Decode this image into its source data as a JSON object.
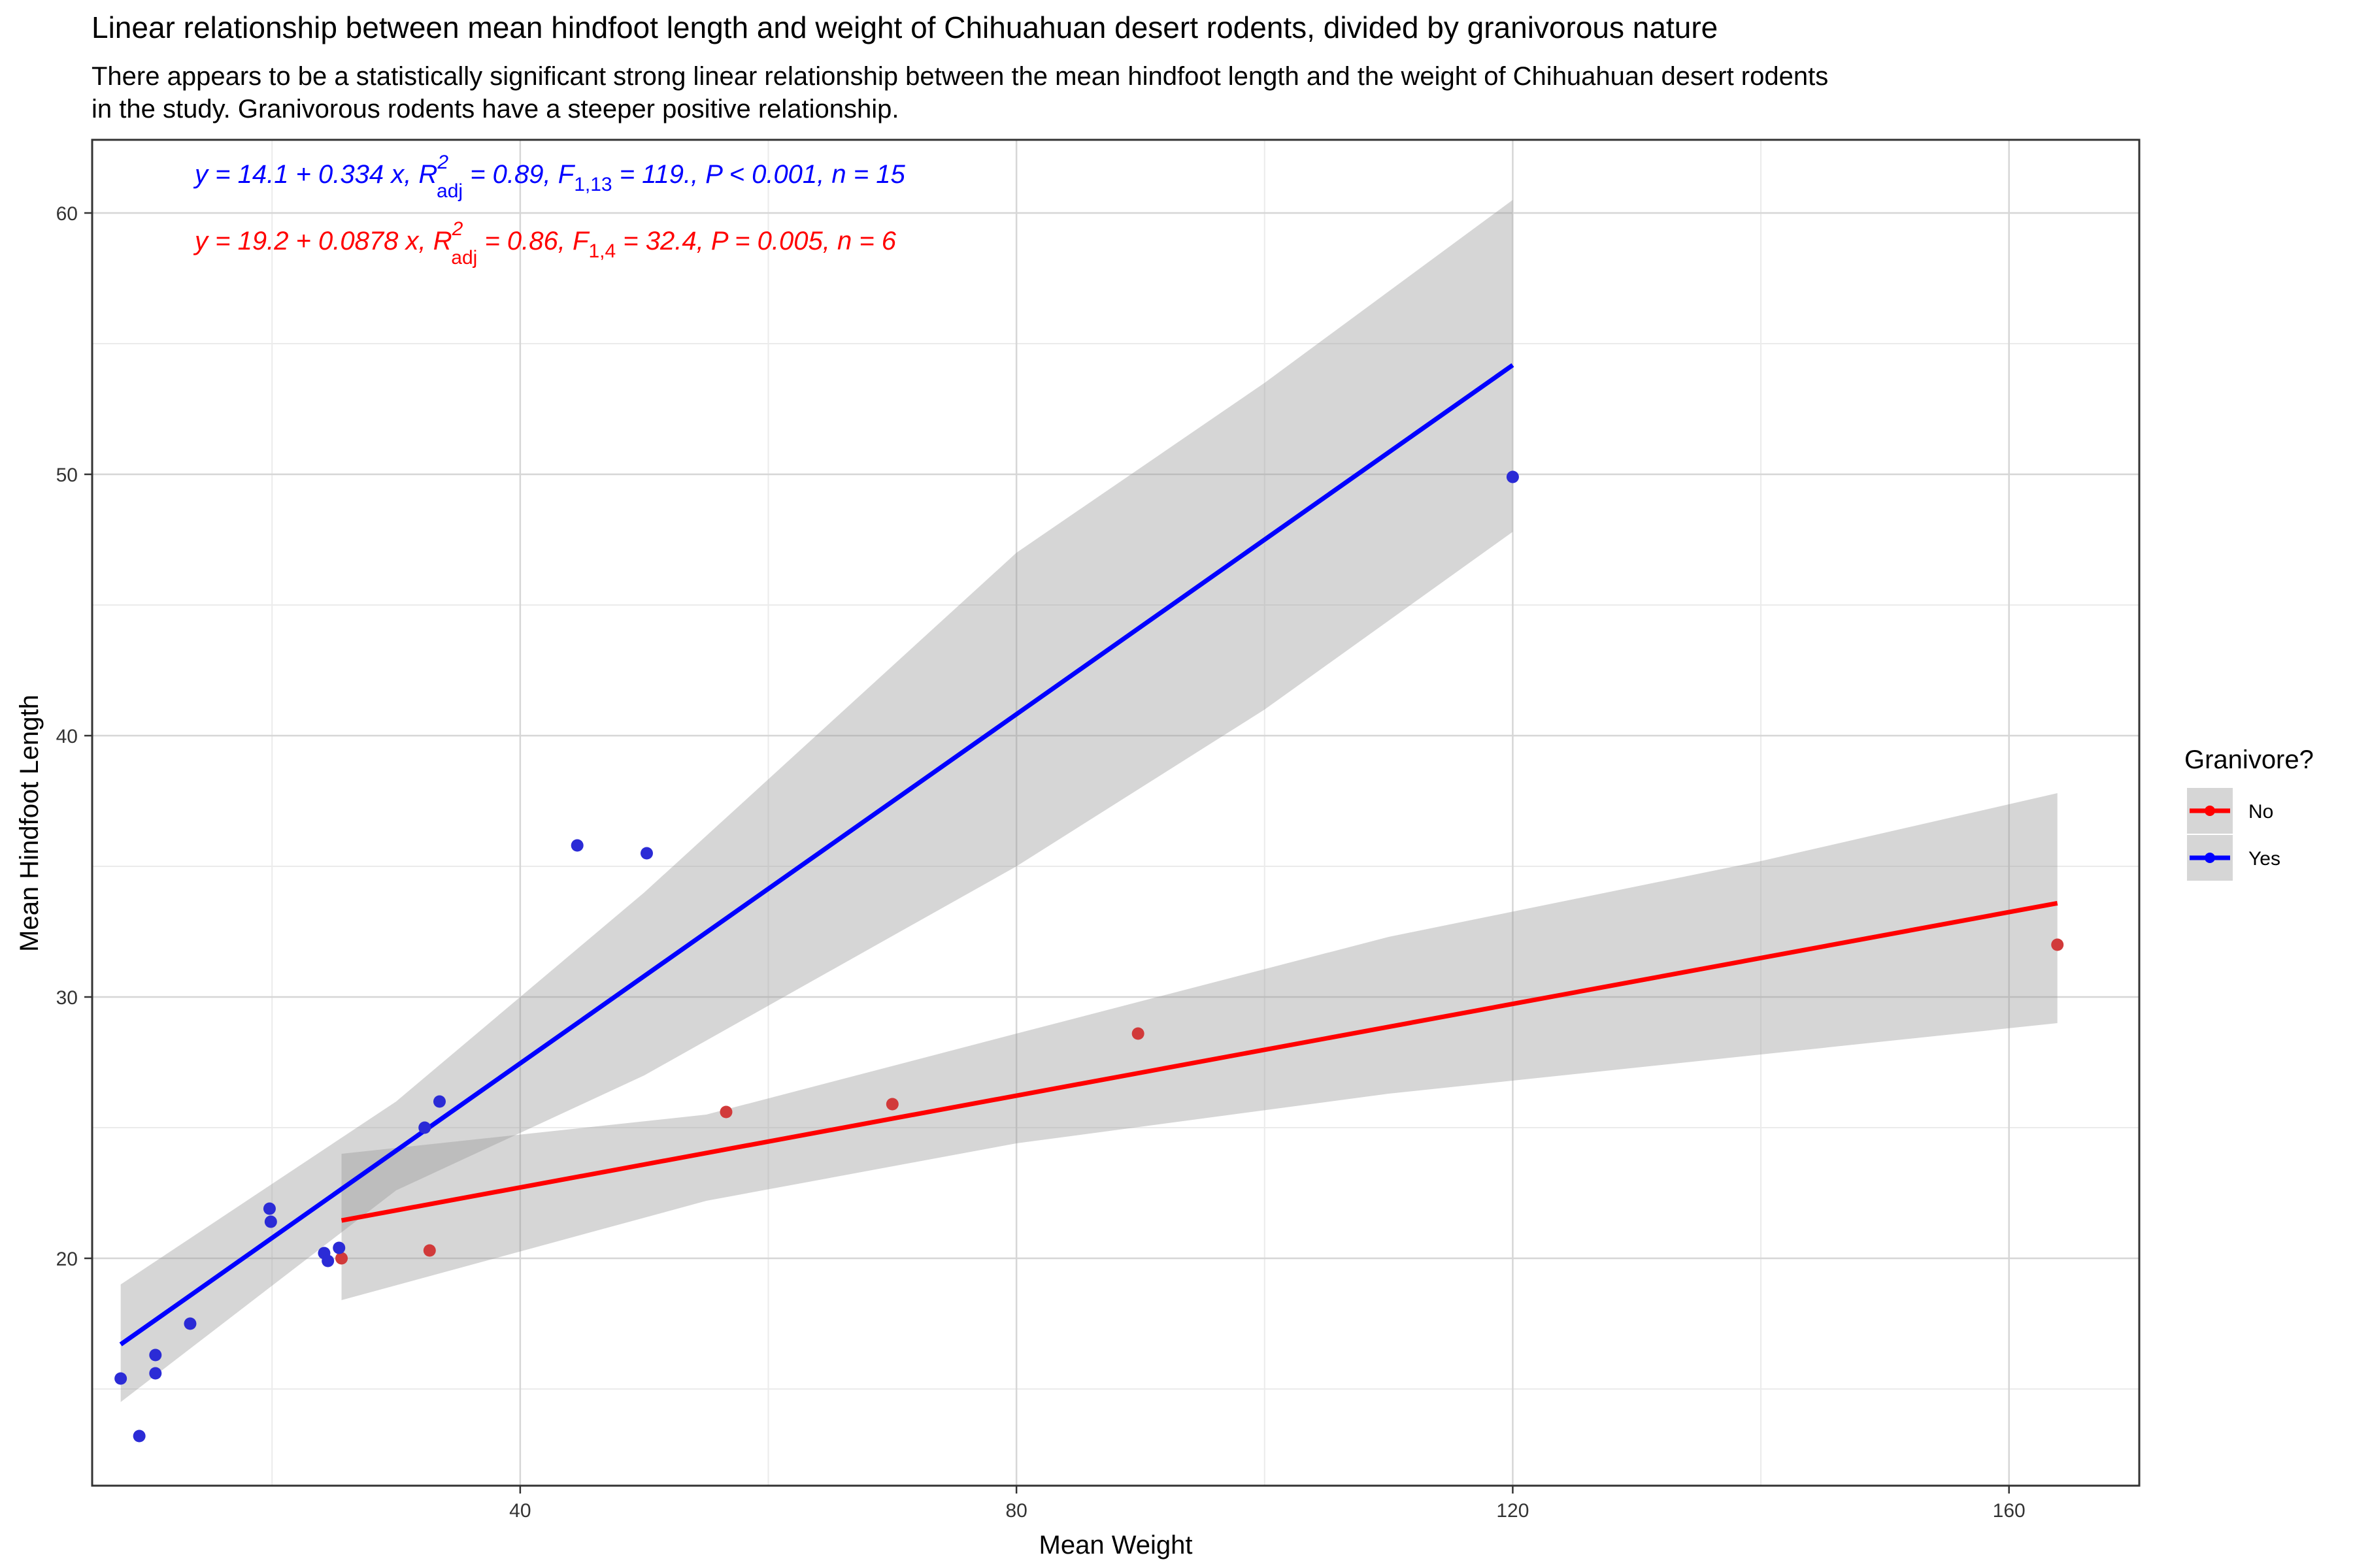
{
  "chart_data": {
    "type": "scatter",
    "title": "Linear relationship between mean hindfoot length and weight of Chihuahuan desert rodents, divided by granivorous nature",
    "subtitle_lines": [
      "There appears to be a statistically significant strong linear relationship between the mean hindfoot length and the weight of Chihuahuan desert rodents",
      "in the study. Granivorous rodents have a steeper positive relationship."
    ],
    "xlabel": "Mean Weight",
    "ylabel": "Mean Hindfoot Length",
    "xlim": [
      5.5,
      170.5
    ],
    "ylim": [
      11.3,
      62.8
    ],
    "x_ticks": [
      40,
      80,
      120,
      160
    ],
    "x_minor_ticks": [
      20,
      60,
      100,
      140
    ],
    "y_ticks": [
      20,
      30,
      40,
      50,
      60
    ],
    "y_minor_ticks": [
      15,
      25,
      35,
      45,
      55
    ],
    "grid": true,
    "legend": {
      "title": "Granivore?",
      "position": "right",
      "entries": [
        "No",
        "Yes"
      ]
    },
    "series": [
      {
        "name": "No",
        "color": "#ff0000",
        "point_color": "#d13a3a",
        "points": [
          {
            "x": 25.6,
            "y": 20.0
          },
          {
            "x": 32.7,
            "y": 20.3
          },
          {
            "x": 56.6,
            "y": 25.6
          },
          {
            "x": 70.0,
            "y": 25.9
          },
          {
            "x": 89.8,
            "y": 28.6
          },
          {
            "x": 163.9,
            "y": 32.0
          }
        ],
        "fit": {
          "intercept": 19.2,
          "slope": 0.0878,
          "x_range": [
            25.6,
            163.9
          ]
        },
        "ci_band": [
          {
            "x": 25.6,
            "lo": 18.4,
            "hi": 24.0
          },
          {
            "x": 55,
            "lo": 22.2,
            "hi": 25.5
          },
          {
            "x": 80,
            "lo": 24.4,
            "hi": 28.6
          },
          {
            "x": 110,
            "lo": 26.3,
            "hi": 32.3
          },
          {
            "x": 140,
            "lo": 27.8,
            "hi": 35.2
          },
          {
            "x": 163.9,
            "lo": 29.0,
            "hi": 37.8
          }
        ],
        "equation": {
          "y_eq": "y = 19.2 + 0.0878 x,",
          "r2_label": "R",
          "r2_sup": "2",
          "r2_sub": "adj",
          "r2_val": "= 0.86,",
          "f_label": "F",
          "f_sub": "1,4",
          "f_val": "= 32.4,",
          "p_part": "P = 0.005,",
          "n_part": "n = 6"
        }
      },
      {
        "name": "Yes",
        "color": "#0000ff",
        "point_color": "#2b2bd6",
        "points": [
          {
            "x": 7.8,
            "y": 15.4
          },
          {
            "x": 9.3,
            "y": 13.2
          },
          {
            "x": 10.6,
            "y": 16.3
          },
          {
            "x": 10.6,
            "y": 15.6
          },
          {
            "x": 13.4,
            "y": 17.5
          },
          {
            "x": 19.8,
            "y": 21.9
          },
          {
            "x": 19.9,
            "y": 21.4
          },
          {
            "x": 24.2,
            "y": 20.2
          },
          {
            "x": 24.5,
            "y": 19.9
          },
          {
            "x": 25.4,
            "y": 20.4
          },
          {
            "x": 32.3,
            "y": 25.0
          },
          {
            "x": 33.5,
            "y": 26.0
          },
          {
            "x": 44.6,
            "y": 35.8
          },
          {
            "x": 50.2,
            "y": 35.5
          },
          {
            "x": 120.0,
            "y": 49.9
          }
        ],
        "fit": {
          "intercept": 14.1,
          "slope": 0.334,
          "x_range": [
            7.8,
            120.0
          ]
        },
        "ci_band": [
          {
            "x": 7.8,
            "lo": 14.5,
            "hi": 19.0
          },
          {
            "x": 30,
            "lo": 22.6,
            "hi": 26.0
          },
          {
            "x": 50,
            "lo": 27.0,
            "hi": 34.0
          },
          {
            "x": 80,
            "lo": 35.0,
            "hi": 47.0
          },
          {
            "x": 100,
            "lo": 41.0,
            "hi": 53.5
          },
          {
            "x": 120.0,
            "lo": 47.8,
            "hi": 60.5
          }
        ],
        "equation": {
          "y_eq": "y = 14.1 + 0.334 x,",
          "r2_label": "R",
          "r2_sup": "2",
          "r2_sub": "adj",
          "r2_val": "= 0.89,",
          "f_label": "F",
          "f_sub": "1,13",
          "f_val": "= 119.,",
          "p_part": "P < 0.001,",
          "n_part": "n = 15"
        }
      }
    ]
  }
}
